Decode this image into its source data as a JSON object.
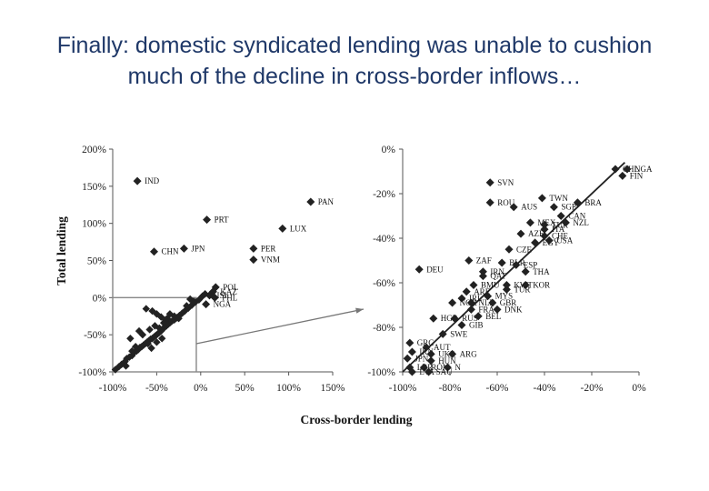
{
  "slide": {
    "title_line1": "Finally: domestic syndicated lending was unable to cushion",
    "title_line2": "much of the decline in cross-border inflows…"
  },
  "chart_data": [
    {
      "type": "scatter",
      "xlabel": "Cross-border lending",
      "ylabel": "Total lending",
      "xlim": [
        -1.0,
        1.5
      ],
      "ylim": [
        -1.0,
        2.0
      ],
      "x_ticks": [
        "-100%",
        "-50%",
        "0%",
        "50%",
        "100%",
        "150%"
      ],
      "y_ticks": [
        "200%",
        "150%",
        "100%",
        "50%",
        "0%",
        "-50%",
        "-100%"
      ],
      "grid": false,
      "zoom_box": {
        "x": [
          -1.0,
          -0.05
        ],
        "y": [
          -1.0,
          0.0
        ]
      },
      "labeled_points": [
        {
          "label": "IND",
          "x": -0.72,
          "y": 1.57
        },
        {
          "label": "PAN",
          "x": 1.25,
          "y": 1.29
        },
        {
          "label": "PRT",
          "x": 0.07,
          "y": 1.05
        },
        {
          "label": "LUX",
          "x": 0.93,
          "y": 0.93
        },
        {
          "label": "CHN",
          "x": -0.53,
          "y": 0.62
        },
        {
          "label": "JPN",
          "x": -0.19,
          "y": 0.66
        },
        {
          "label": "PER",
          "x": 0.6,
          "y": 0.66
        },
        {
          "label": "VNM",
          "x": 0.6,
          "y": 0.51
        },
        {
          "label": "POL",
          "x": 0.17,
          "y": 0.14
        },
        {
          "label": "KAZ",
          "x": 0.14,
          "y": 0.08
        },
        {
          "label": "ISL",
          "x": 0.1,
          "y": 0.03
        },
        {
          "label": "PHL",
          "x": 0.16,
          "y": 0.0
        },
        {
          "label": "NGA",
          "x": 0.06,
          "y": -0.09
        }
      ],
      "cluster_points": [
        [
          -0.97,
          -0.97
        ],
        [
          -0.93,
          -0.93
        ],
        [
          -0.9,
          -0.9
        ],
        [
          -0.86,
          -0.86
        ],
        [
          -0.84,
          -0.82
        ],
        [
          -0.81,
          -0.8
        ],
        [
          -0.78,
          -0.78
        ],
        [
          -0.76,
          -0.74
        ],
        [
          -0.73,
          -0.72
        ],
        [
          -0.71,
          -0.7
        ],
        [
          -0.69,
          -0.67
        ],
        [
          -0.67,
          -0.66
        ],
        [
          -0.65,
          -0.64
        ],
        [
          -0.63,
          -0.62
        ],
        [
          -0.61,
          -0.6
        ],
        [
          -0.59,
          -0.58
        ],
        [
          -0.57,
          -0.56
        ],
        [
          -0.55,
          -0.55
        ],
        [
          -0.53,
          -0.53
        ],
        [
          -0.51,
          -0.51
        ],
        [
          -0.49,
          -0.49
        ],
        [
          -0.47,
          -0.47
        ],
        [
          -0.45,
          -0.45
        ],
        [
          -0.43,
          -0.42
        ],
        [
          -0.41,
          -0.4
        ],
        [
          -0.39,
          -0.38
        ],
        [
          -0.37,
          -0.36
        ],
        [
          -0.35,
          -0.34
        ],
        [
          -0.33,
          -0.32
        ],
        [
          -0.3,
          -0.3
        ],
        [
          -0.27,
          -0.27
        ],
        [
          -0.24,
          -0.24
        ],
        [
          -0.21,
          -0.21
        ],
        [
          -0.18,
          -0.18
        ],
        [
          -0.14,
          -0.14
        ],
        [
          -0.1,
          -0.1
        ],
        [
          -0.06,
          -0.06
        ],
        [
          -0.62,
          -0.15
        ],
        [
          -0.55,
          -0.18
        ],
        [
          -0.5,
          -0.22
        ],
        [
          -0.45,
          -0.26
        ],
        [
          -0.4,
          -0.3
        ],
        [
          -0.35,
          -0.22
        ],
        [
          -0.3,
          -0.25
        ],
        [
          -0.25,
          -0.28
        ],
        [
          -0.7,
          -0.45
        ],
        [
          -0.66,
          -0.5
        ],
        [
          -0.58,
          -0.43
        ],
        [
          -0.52,
          -0.38
        ],
        [
          -0.47,
          -0.41
        ],
        [
          -0.42,
          -0.34
        ],
        [
          -0.38,
          -0.28
        ],
        [
          -0.6,
          -0.62
        ],
        [
          -0.56,
          -0.68
        ],
        [
          -0.5,
          -0.6
        ],
        [
          -0.44,
          -0.55
        ],
        [
          -0.8,
          -0.55
        ],
        [
          -0.85,
          -0.92
        ],
        [
          -0.78,
          -0.72
        ],
        [
          -0.74,
          -0.66
        ],
        [
          -0.12,
          -0.02
        ],
        [
          -0.08,
          -0.05
        ],
        [
          -0.02,
          -0.03
        ],
        [
          0.02,
          0.02
        ],
        [
          0.05,
          0.05
        ],
        [
          -0.16,
          -0.11
        ]
      ]
    },
    {
      "type": "scatter",
      "xlabel": "Cross-border lending",
      "xlim": [
        -1.0,
        0.0
      ],
      "ylim": [
        -1.0,
        0.0
      ],
      "x_ticks": [
        "-100%",
        "-80%",
        "-60%",
        "-40%",
        "-20%",
        "0%"
      ],
      "y_ticks": [
        "0%",
        "-20%",
        "-40%",
        "-60%",
        "-80%",
        "-100%"
      ],
      "grid": false,
      "fit_line": {
        "from": [
          -1.0,
          -1.0
        ],
        "to": [
          -0.06,
          -0.06
        ]
      },
      "labeled_points": [
        {
          "label": "CHL",
          "x": -0.1,
          "y": -0.09
        },
        {
          "label": "NGA",
          "x": -0.05,
          "y": -0.09
        },
        {
          "label": "FIN",
          "x": -0.07,
          "y": -0.12
        },
        {
          "label": "SVN",
          "x": -0.63,
          "y": -0.15
        },
        {
          "label": "TWN",
          "x": -0.41,
          "y": -0.22
        },
        {
          "label": "BRA",
          "x": -0.26,
          "y": -0.24
        },
        {
          "label": "ROU",
          "x": -0.63,
          "y": -0.24
        },
        {
          "label": "SGP",
          "x": -0.36,
          "y": -0.26
        },
        {
          "label": "AUS",
          "x": -0.53,
          "y": -0.26
        },
        {
          "label": "CAN",
          "x": -0.33,
          "y": -0.3
        },
        {
          "label": "MEX",
          "x": -0.46,
          "y": -0.33
        },
        {
          "label": "TUR",
          "x": -0.4,
          "y": -0.34
        },
        {
          "label": "NZL",
          "x": -0.31,
          "y": -0.33
        },
        {
          "label": "AZE",
          "x": -0.5,
          "y": -0.38
        },
        {
          "label": "ITA",
          "x": -0.4,
          "y": -0.36
        },
        {
          "label": "CHE",
          "x": -0.4,
          "y": -0.39
        },
        {
          "label": "EGY",
          "x": -0.44,
          "y": -0.42
        },
        {
          "label": "USA",
          "x": -0.38,
          "y": -0.41
        },
        {
          "label": "CZE",
          "x": -0.55,
          "y": -0.45
        },
        {
          "label": "ZAF",
          "x": -0.72,
          "y": -0.5
        },
        {
          "label": "BLR",
          "x": -0.58,
          "y": -0.51
        },
        {
          "label": "DEU",
          "x": -0.93,
          "y": -0.54
        },
        {
          "label": "ESP",
          "x": -0.52,
          "y": -0.52
        },
        {
          "label": "IRN",
          "x": -0.66,
          "y": -0.55
        },
        {
          "label": "THA",
          "x": -0.48,
          "y": -0.55
        },
        {
          "label": "QAT",
          "x": -0.66,
          "y": -0.57
        },
        {
          "label": "BMU",
          "x": -0.7,
          "y": -0.61
        },
        {
          "label": "KWT",
          "x": -0.56,
          "y": -0.61
        },
        {
          "label": "KOR",
          "x": -0.48,
          "y": -0.61
        },
        {
          "label": "ARE",
          "x": -0.73,
          "y": -0.64
        },
        {
          "label": "TUR",
          "x": -0.56,
          "y": -0.63
        },
        {
          "label": "MYS",
          "x": -0.64,
          "y": -0.66
        },
        {
          "label": "IRL",
          "x": -0.75,
          "y": -0.67
        },
        {
          "label": "NOR",
          "x": -0.79,
          "y": -0.69
        },
        {
          "label": "NLD",
          "x": -0.71,
          "y": -0.69
        },
        {
          "label": "GBR",
          "x": -0.62,
          "y": -0.69
        },
        {
          "label": "FRA",
          "x": -0.71,
          "y": -0.72
        },
        {
          "label": "DNK",
          "x": -0.6,
          "y": -0.72
        },
        {
          "label": "HGR",
          "x": -0.87,
          "y": -0.76
        },
        {
          "label": "RUS",
          "x": -0.78,
          "y": -0.76
        },
        {
          "label": "BEL",
          "x": -0.68,
          "y": -0.75
        },
        {
          "label": "GIB",
          "x": -0.75,
          "y": -0.79
        },
        {
          "label": "SWE",
          "x": -0.83,
          "y": -0.83
        },
        {
          "label": "GRC",
          "x": -0.97,
          "y": -0.87
        },
        {
          "label": "AUT",
          "x": -0.9,
          "y": -0.89
        },
        {
          "label": "IRN",
          "x": -0.96,
          "y": -0.91
        },
        {
          "label": "UKR",
          "x": -0.88,
          "y": -0.92
        },
        {
          "label": "ARG",
          "x": -0.79,
          "y": -0.92
        },
        {
          "label": "JPN",
          "x": -0.98,
          "y": -0.94
        },
        {
          "label": "HUN",
          "x": -0.88,
          "y": -0.95
        },
        {
          "label": "LBR",
          "x": -0.97,
          "y": -0.98
        },
        {
          "label": "ROM",
          "x": -0.91,
          "y": -0.98
        },
        {
          "label": "N",
          "x": -0.81,
          "y": -0.98
        },
        {
          "label": "LVA",
          "x": -0.96,
          "y": -1.0
        },
        {
          "label": "SAU",
          "x": -0.89,
          "y": -1.0
        }
      ]
    }
  ]
}
